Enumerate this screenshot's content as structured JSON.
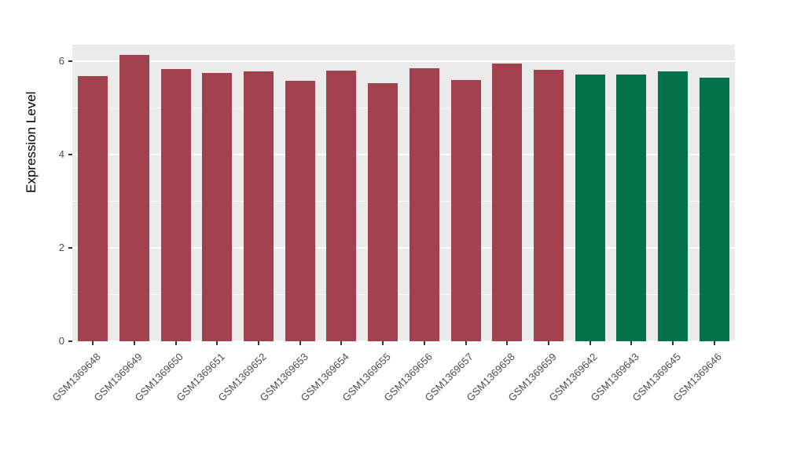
{
  "chart_data": {
    "type": "bar",
    "title": "",
    "xlabel": "",
    "ylabel": "Expression Level",
    "ylim": [
      0,
      6.35
    ],
    "yticks": [
      0,
      2,
      4,
      6
    ],
    "minor_yticks": [
      1,
      3,
      5
    ],
    "grid": true,
    "legend": "none",
    "categories": [
      "GSM1369648",
      "GSM1369649",
      "GSM1369650",
      "GSM1369651",
      "GSM1369652",
      "GSM1369653",
      "GSM1369654",
      "GSM1369655",
      "GSM1369656",
      "GSM1369657",
      "GSM1369658",
      "GSM1369659",
      "GSM1369642",
      "GSM1369643",
      "GSM1369645",
      "GSM1369646"
    ],
    "values": [
      5.67,
      6.13,
      5.83,
      5.74,
      5.78,
      5.57,
      5.79,
      5.53,
      5.84,
      5.6,
      5.95,
      5.82,
      5.72,
      5.71,
      5.78,
      5.64
    ],
    "groups": [
      "red",
      "red",
      "red",
      "red",
      "red",
      "red",
      "red",
      "red",
      "red",
      "red",
      "red",
      "red",
      "green",
      "green",
      "green",
      "green"
    ],
    "series_colors": {
      "red": "#A2424E",
      "green": "#05714B"
    },
    "panel_bg": "#EBEBEB",
    "gridline_color": "#FFFFFF",
    "tick_color": "#333333",
    "label_color": "#4D4D4D"
  }
}
